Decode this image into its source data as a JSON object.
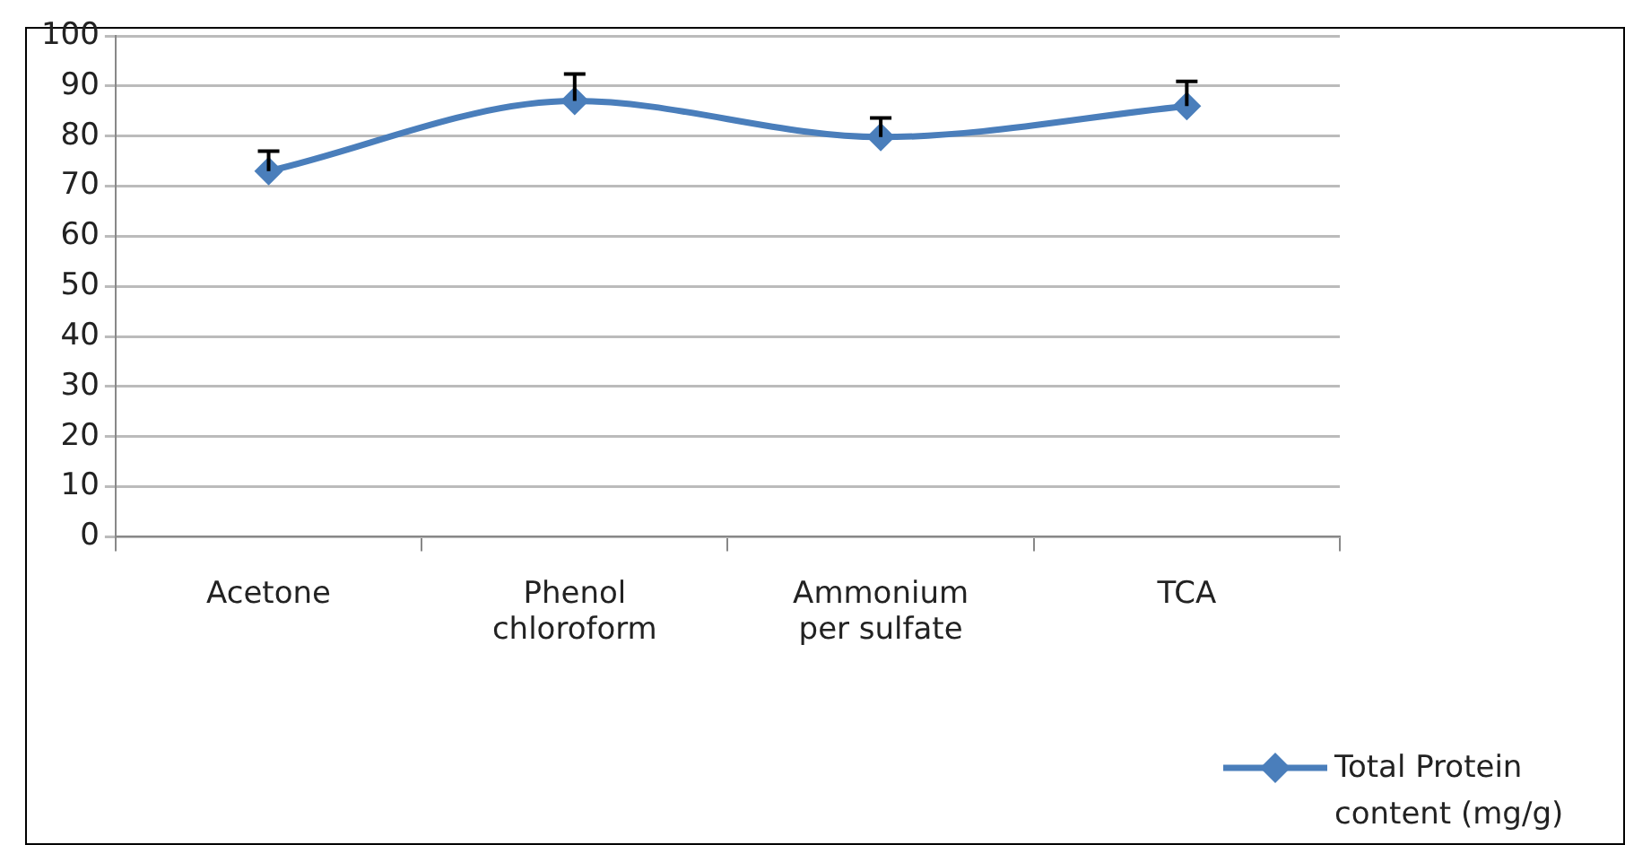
{
  "chart_data": {
    "type": "line",
    "categories": [
      "Acetone",
      "Phenol chloroform",
      "Ammonium per sulfate",
      "TCA"
    ],
    "series": [
      {
        "name": "Total Protein content (mg/g)",
        "color": "#4a7ebb",
        "values": [
          73,
          87,
          79.8,
          86
        ],
        "errors": [
          [
            73,
            77
          ],
          [
            87,
            92.4
          ],
          [
            79.8,
            83.6
          ],
          [
            86,
            90.9
          ]
        ]
      }
    ],
    "ylim": [
      0,
      100
    ],
    "yticks": [
      0,
      10,
      20,
      30,
      40,
      50,
      60,
      70,
      80,
      90,
      100
    ],
    "grid": "y",
    "legend": "bottom right",
    "marker": "diamond",
    "line_style": "solid"
  }
}
